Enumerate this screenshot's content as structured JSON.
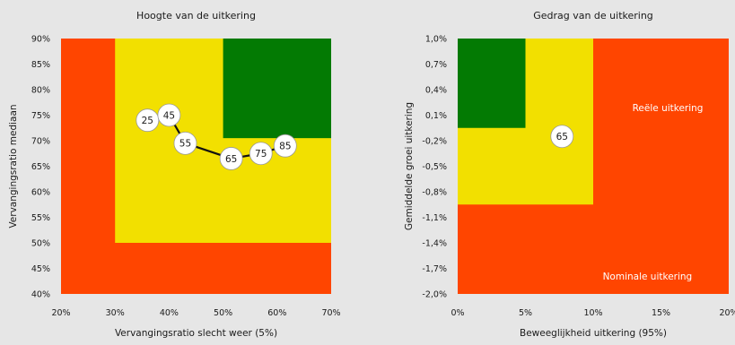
{
  "colors": {
    "background": "#e6e6e6",
    "red": "#ff4500",
    "yellow": "#f2e000",
    "green": "#037a03",
    "line": "#111111",
    "bubble_fill": "#ffffff",
    "bubble_stroke": "#999999"
  },
  "chart_data": [
    {
      "type": "scatter",
      "title": "Hoogte van de uitkering",
      "xlabel": "Vervangingsratio slecht weer (5%)",
      "ylabel": "Vervangingsratio mediaan",
      "xlim": [
        20,
        70
      ],
      "ylim": [
        40,
        90
      ],
      "x_ticks": [
        "20%",
        "30%",
        "40%",
        "50%",
        "60%",
        "70%"
      ],
      "x_tick_values": [
        20,
        30,
        40,
        50,
        60,
        70
      ],
      "y_ticks": [
        "40%",
        "45%",
        "50%",
        "55%",
        "60%",
        "65%",
        "70%",
        "75%",
        "80%",
        "85%",
        "90%"
      ],
      "y_tick_values": [
        40,
        45,
        50,
        55,
        60,
        65,
        70,
        75,
        80,
        85,
        90
      ],
      "zones": [
        {
          "color": "red",
          "x": [
            20,
            70
          ],
          "y": [
            40,
            90
          ]
        },
        {
          "color": "yellow",
          "x": [
            30,
            70
          ],
          "y": [
            50,
            90
          ]
        },
        {
          "color": "green",
          "x": [
            50,
            70
          ],
          "y": [
            70.5,
            90
          ]
        }
      ],
      "points": [
        {
          "label": "25",
          "x": 36,
          "y": 74
        },
        {
          "label": "45",
          "x": 40,
          "y": 75
        },
        {
          "label": "55",
          "x": 43,
          "y": 69.5
        },
        {
          "label": "65",
          "x": 51.5,
          "y": 66.5
        },
        {
          "label": "75",
          "x": 57,
          "y": 67.5
        },
        {
          "label": "85",
          "x": 61.5,
          "y": 69
        }
      ],
      "line_through": [
        "45",
        "55",
        "65",
        "75",
        "85"
      ],
      "grid": false
    },
    {
      "type": "scatter",
      "title": "Gedrag van de uitkering",
      "xlabel": "Beweeglijkheid uitkering (95%)",
      "ylabel": "Gemiddelde groei uitkering",
      "xlim": [
        0,
        20
      ],
      "ylim": [
        -2.0,
        1.0
      ],
      "x_ticks": [
        "0%",
        "5%",
        "10%",
        "15%",
        "20%"
      ],
      "x_tick_values": [
        0,
        5,
        10,
        15,
        20
      ],
      "y_ticks": [
        "-2,0%",
        "-1,7%",
        "-1,4%",
        "-1,1%",
        "-0,8%",
        "-0,5%",
        "-0,2%",
        "0,1%",
        "0,4%",
        "0,7%",
        "1,0%"
      ],
      "y_tick_values": [
        -2.0,
        -1.7,
        -1.4,
        -1.1,
        -0.8,
        -0.5,
        -0.2,
        0.1,
        0.4,
        0.7,
        1.0
      ],
      "zones": [
        {
          "color": "red",
          "x": [
            0,
            20
          ],
          "y": [
            -2.0,
            1.0
          ]
        },
        {
          "color": "yellow",
          "x": [
            0,
            10
          ],
          "y": [
            -0.95,
            1.0
          ]
        },
        {
          "color": "green",
          "x": [
            0,
            5
          ],
          "y": [
            -0.05,
            1.0
          ]
        }
      ],
      "points": [
        {
          "label": "65",
          "x": 7.7,
          "y": -0.15
        }
      ],
      "annotations": [
        {
          "text": "Reële uitkering",
          "x": 15.5,
          "y": 0.15
        },
        {
          "text": "Nominale uitkering",
          "x": 14,
          "y": -1.83
        }
      ],
      "grid": false
    }
  ]
}
